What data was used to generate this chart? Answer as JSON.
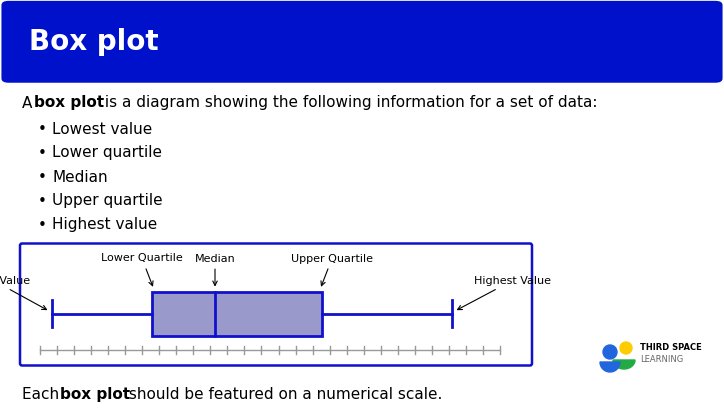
{
  "title": "Box plot",
  "title_bg": "#0011CC",
  "title_color": "#FFFFFF",
  "title_fontsize": 20,
  "body_bg": "#FFFFFF",
  "card_bg": "#EEEEEE",
  "bullet_items": [
    "Lowest value",
    "Lower quartile",
    "Median",
    "Upper quartile",
    "Highest value"
  ],
  "box_fill": "#9999CC",
  "box_edge": "#1111CC",
  "whisker_color": "#1111CC",
  "diagram_border": "#1111CC",
  "label_fontsize": 8.0,
  "text_fontsize": 11,
  "tick_count": 27,
  "logo_blue": "#2266DD",
  "logo_yellow": "#FFCC00",
  "logo_green": "#22AA44"
}
